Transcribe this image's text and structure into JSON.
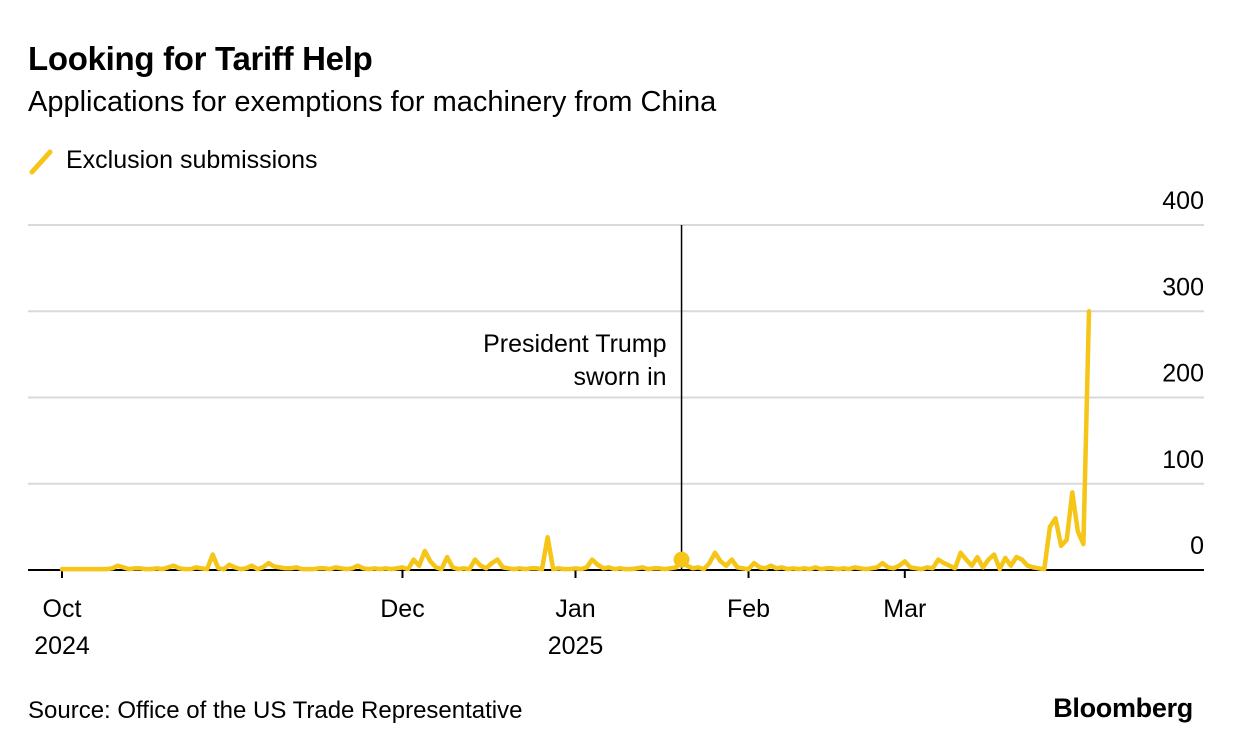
{
  "title": "Looking for Tariff Help",
  "subtitle": "Applications for exemptions for machinery from China",
  "source": "Source: Office of the US Trade Representative",
  "brand": "Bloomberg",
  "colors": {
    "series": "#f5c518",
    "grid": "#d9d9d9",
    "axis": "#000000"
  },
  "chart_data": {
    "type": "line",
    "title": "Looking for Tariff Help",
    "subtitle": "Applications for exemptions for machinery from China",
    "xlabel": "",
    "ylabel": "",
    "ylim": [
      0,
      400
    ],
    "yticks": [
      0,
      100,
      200,
      300,
      400
    ],
    "xlim": [
      0,
      184
    ],
    "x_ticks": [
      {
        "pos": 0,
        "label": "Oct",
        "sub": "2024"
      },
      {
        "pos": 61,
        "label": "Dec",
        "sub": ""
      },
      {
        "pos": 92,
        "label": "Jan",
        "sub": "2025"
      },
      {
        "pos": 123,
        "label": "Feb",
        "sub": ""
      },
      {
        "pos": 151,
        "label": "Mar",
        "sub": ""
      }
    ],
    "legend": [
      "Exclusion submissions"
    ],
    "annotation": {
      "x": 111,
      "value": 12,
      "text_line1": "President Trump",
      "text_line2": "sworn in"
    },
    "series": [
      {
        "name": "Exclusion submissions",
        "points": [
          [
            0,
            1
          ],
          [
            1,
            1
          ],
          [
            2,
            1
          ],
          [
            3,
            1
          ],
          [
            4,
            1
          ],
          [
            5,
            1
          ],
          [
            6,
            1
          ],
          [
            7,
            1
          ],
          [
            8,
            1
          ],
          [
            9,
            2
          ],
          [
            10,
            5
          ],
          [
            11,
            3
          ],
          [
            12,
            1
          ],
          [
            13,
            2
          ],
          [
            14,
            2
          ],
          [
            15,
            1
          ],
          [
            16,
            1
          ],
          [
            17,
            2
          ],
          [
            18,
            1
          ],
          [
            19,
            3
          ],
          [
            20,
            5
          ],
          [
            21,
            2
          ],
          [
            22,
            1
          ],
          [
            23,
            1
          ],
          [
            24,
            3
          ],
          [
            25,
            2
          ],
          [
            26,
            1
          ],
          [
            27,
            18
          ],
          [
            28,
            2
          ],
          [
            29,
            1
          ],
          [
            30,
            6
          ],
          [
            31,
            3
          ],
          [
            32,
            1
          ],
          [
            33,
            2
          ],
          [
            34,
            5
          ],
          [
            35,
            1
          ],
          [
            36,
            3
          ],
          [
            37,
            8
          ],
          [
            38,
            4
          ],
          [
            39,
            3
          ],
          [
            40,
            2
          ],
          [
            41,
            2
          ],
          [
            42,
            3
          ],
          [
            43,
            1
          ],
          [
            44,
            1
          ],
          [
            45,
            1
          ],
          [
            46,
            2
          ],
          [
            47,
            2
          ],
          [
            48,
            1
          ],
          [
            49,
            3
          ],
          [
            50,
            2
          ],
          [
            51,
            1
          ],
          [
            52,
            2
          ],
          [
            53,
            5
          ],
          [
            54,
            2
          ],
          [
            55,
            1
          ],
          [
            56,
            2
          ],
          [
            57,
            1
          ],
          [
            58,
            2
          ],
          [
            59,
            1
          ],
          [
            60,
            2
          ],
          [
            61,
            3
          ],
          [
            62,
            1
          ],
          [
            63,
            12
          ],
          [
            64,
            5
          ],
          [
            65,
            22
          ],
          [
            66,
            10
          ],
          [
            67,
            3
          ],
          [
            68,
            1
          ],
          [
            69,
            15
          ],
          [
            70,
            3
          ],
          [
            71,
            1
          ],
          [
            72,
            2
          ],
          [
            73,
            1
          ],
          [
            74,
            12
          ],
          [
            75,
            5
          ],
          [
            76,
            2
          ],
          [
            77,
            8
          ],
          [
            78,
            12
          ],
          [
            79,
            3
          ],
          [
            80,
            2
          ],
          [
            81,
            1
          ],
          [
            82,
            2
          ],
          [
            83,
            1
          ],
          [
            84,
            2
          ],
          [
            85,
            2
          ],
          [
            86,
            1
          ],
          [
            87,
            38
          ],
          [
            88,
            1
          ],
          [
            89,
            2
          ],
          [
            90,
            1
          ],
          [
            91,
            1
          ],
          [
            92,
            2
          ],
          [
            93,
            1
          ],
          [
            94,
            3
          ],
          [
            95,
            12
          ],
          [
            96,
            6
          ],
          [
            97,
            2
          ],
          [
            98,
            3
          ],
          [
            99,
            1
          ],
          [
            100,
            2
          ],
          [
            101,
            1
          ],
          [
            102,
            1
          ],
          [
            103,
            2
          ],
          [
            104,
            3
          ],
          [
            105,
            1
          ],
          [
            106,
            2
          ],
          [
            107,
            2
          ],
          [
            108,
            1
          ],
          [
            109,
            2
          ],
          [
            110,
            3
          ],
          [
            111,
            12
          ],
          [
            112,
            5
          ],
          [
            113,
            2
          ],
          [
            114,
            3
          ],
          [
            115,
            1
          ],
          [
            116,
            8
          ],
          [
            117,
            20
          ],
          [
            118,
            10
          ],
          [
            119,
            5
          ],
          [
            120,
            12
          ],
          [
            121,
            3
          ],
          [
            122,
            2
          ],
          [
            123,
            1
          ],
          [
            124,
            8
          ],
          [
            125,
            3
          ],
          [
            126,
            2
          ],
          [
            127,
            5
          ],
          [
            128,
            2
          ],
          [
            129,
            3
          ],
          [
            130,
            1
          ],
          [
            131,
            2
          ],
          [
            132,
            1
          ],
          [
            133,
            2
          ],
          [
            134,
            1
          ],
          [
            135,
            3
          ],
          [
            136,
            1
          ],
          [
            137,
            2
          ],
          [
            138,
            2
          ],
          [
            139,
            1
          ],
          [
            140,
            2
          ],
          [
            141,
            1
          ],
          [
            142,
            3
          ],
          [
            143,
            2
          ],
          [
            144,
            1
          ],
          [
            145,
            2
          ],
          [
            146,
            3
          ],
          [
            147,
            8
          ],
          [
            148,
            3
          ],
          [
            149,
            2
          ],
          [
            150,
            5
          ],
          [
            151,
            10
          ],
          [
            152,
            3
          ],
          [
            153,
            2
          ],
          [
            154,
            1
          ],
          [
            155,
            3
          ],
          [
            156,
            2
          ],
          [
            157,
            12
          ],
          [
            158,
            8
          ],
          [
            159,
            5
          ],
          [
            160,
            2
          ],
          [
            161,
            20
          ],
          [
            162,
            12
          ],
          [
            163,
            5
          ],
          [
            164,
            15
          ],
          [
            165,
            3
          ],
          [
            166,
            12
          ],
          [
            167,
            18
          ],
          [
            168,
            1
          ],
          [
            169,
            14
          ],
          [
            170,
            5
          ],
          [
            171,
            15
          ],
          [
            172,
            12
          ],
          [
            173,
            5
          ],
          [
            174,
            3
          ],
          [
            175,
            2
          ],
          [
            176,
            1
          ],
          [
            177,
            50
          ],
          [
            178,
            60
          ],
          [
            179,
            28
          ],
          [
            180,
            35
          ],
          [
            181,
            90
          ],
          [
            182,
            45
          ],
          [
            183,
            30
          ],
          [
            184,
            300
          ]
        ]
      }
    ]
  }
}
